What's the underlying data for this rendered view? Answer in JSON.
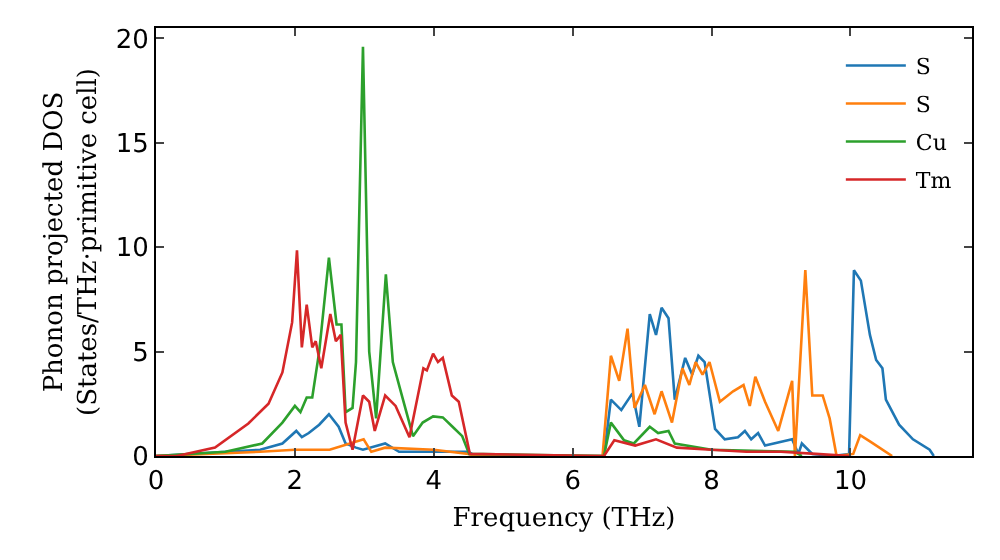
{
  "chart_data": {
    "type": "line",
    "xlabel": "Frequency (THz)",
    "ylabel": "Phonon projected DOS\n(States/THz·primitive cell)",
    "xlim": [
      0,
      11.75
    ],
    "ylim": [
      0,
      20.5
    ],
    "xticks": [
      0,
      2,
      4,
      6,
      8,
      10
    ],
    "yticks": [
      0,
      5,
      10,
      15,
      20
    ],
    "grid": false,
    "legend": "top right",
    "marker": "none",
    "line_style": "solid",
    "series": [
      {
        "name": "S",
        "color": "#1f77b4",
        "x": [
          0,
          1.5,
          1.82,
          2.02,
          2.1,
          2.2,
          2.35,
          2.49,
          2.63,
          2.73,
          2.88,
          2.98,
          3.3,
          3.5,
          4.5,
          4.6,
          6.4,
          6.45,
          6.55,
          6.7,
          6.86,
          6.96,
          7.11,
          7.2,
          7.28,
          7.38,
          7.47,
          7.62,
          7.72,
          7.81,
          7.9,
          8.05,
          8.19,
          8.38,
          8.48,
          8.57,
          8.67,
          8.77,
          9.16,
          9.25,
          9.3,
          9.45,
          9.74,
          9.98,
          10.05,
          10.15,
          10.28,
          10.37,
          10.46,
          10.51,
          10.7,
          10.9,
          11.14,
          11.2
        ],
        "values": [
          0,
          0.3,
          0.6,
          1.2,
          0.9,
          1.1,
          1.5,
          2.0,
          1.4,
          0.6,
          0.4,
          0.3,
          0.6,
          0.2,
          0.2,
          0,
          0,
          0,
          2.7,
          2.2,
          3.0,
          1.4,
          6.8,
          5.8,
          7.1,
          6.6,
          2.7,
          4.7,
          3.9,
          4.8,
          4.5,
          1.3,
          0.8,
          0.9,
          1.2,
          0.8,
          1.1,
          0.5,
          0.8,
          0.1,
          0.6,
          0.1,
          0,
          0.1,
          8.9,
          8.4,
          5.8,
          4.6,
          4.2,
          2.7,
          1.5,
          0.8,
          0.3,
          0
        ]
      },
      {
        "name": "S",
        "color": "#ff7f0e",
        "x": [
          0,
          1.5,
          2.0,
          2.5,
          2.99,
          3.1,
          3.3,
          4.0,
          4.5,
          4.6,
          6.4,
          6.43,
          6.55,
          6.67,
          6.79,
          6.89,
          7.04,
          7.18,
          7.28,
          7.43,
          7.58,
          7.68,
          7.77,
          7.87,
          7.97,
          8.12,
          8.31,
          8.46,
          8.55,
          8.63,
          8.77,
          8.96,
          9.16,
          9.2,
          9.35,
          9.45,
          9.6,
          9.7,
          9.8,
          10.04,
          10.14,
          10.28,
          10.6
        ],
        "values": [
          0,
          0.2,
          0.3,
          0.3,
          0.8,
          0.2,
          0.4,
          0.3,
          0.1,
          0,
          0,
          0,
          4.8,
          3.6,
          6.1,
          2.3,
          3.4,
          2.0,
          3.1,
          1.6,
          4.2,
          3.4,
          4.5,
          3.9,
          4.5,
          2.6,
          3.1,
          3.4,
          2.4,
          3.8,
          2.6,
          1.2,
          3.6,
          0,
          8.9,
          2.9,
          2.9,
          1.8,
          0,
          0.1,
          1.0,
          0.7,
          0
        ]
      },
      {
        "name": "Cu",
        "color": "#2ca02c",
        "x": [
          0,
          1.0,
          1.53,
          1.82,
          2.0,
          2.08,
          2.17,
          2.25,
          2.35,
          2.49,
          2.6,
          2.67,
          2.73,
          2.83,
          2.88,
          2.98,
          3.07,
          3.17,
          3.31,
          3.41,
          3.54,
          3.7,
          3.84,
          3.99,
          4.13,
          4.27,
          4.41,
          4.51,
          6.4,
          6.45,
          6.55,
          6.74,
          6.88,
          7.11,
          7.23,
          7.38,
          7.47,
          8.0,
          9.2,
          9.3
        ],
        "values": [
          0,
          0.2,
          0.6,
          1.6,
          2.4,
          2.1,
          2.8,
          2.8,
          5.0,
          9.5,
          6.3,
          6.3,
          2.1,
          2.3,
          4.5,
          19.6,
          5.0,
          1.8,
          8.7,
          4.5,
          2.9,
          0.95,
          1.6,
          1.9,
          1.85,
          1.4,
          0.95,
          0.1,
          0,
          0,
          1.6,
          0.75,
          0.6,
          1.4,
          1.1,
          1.2,
          0.6,
          0.3,
          0.2,
          0
        ]
      },
      {
        "name": "Tm",
        "color": "#d62728",
        "x": [
          0,
          0.3,
          0.85,
          1.33,
          1.62,
          1.82,
          1.96,
          2.03,
          2.1,
          2.17,
          2.25,
          2.3,
          2.38,
          2.51,
          2.59,
          2.66,
          2.73,
          2.83,
          2.98,
          3.07,
          3.15,
          3.3,
          3.45,
          3.65,
          3.85,
          3.9,
          3.99,
          4.06,
          4.13,
          4.26,
          4.36,
          4.52,
          6.4,
          6.45,
          6.6,
          6.9,
          7.2,
          7.5,
          8.0,
          8.5,
          9.0,
          9.5,
          10.0
        ],
        "values": [
          0,
          0,
          0.4,
          1.56,
          2.5,
          4.0,
          6.4,
          9.85,
          5.2,
          7.25,
          5.2,
          5.5,
          4.2,
          6.8,
          5.5,
          5.8,
          1.6,
          0.3,
          2.9,
          2.6,
          1.2,
          2.9,
          2.4,
          0.9,
          4.2,
          4.1,
          4.9,
          4.5,
          4.7,
          2.9,
          2.6,
          0.1,
          0,
          0,
          0.75,
          0.5,
          0.8,
          0.4,
          0.3,
          0.2,
          0.2,
          0.1,
          0
        ]
      }
    ]
  }
}
